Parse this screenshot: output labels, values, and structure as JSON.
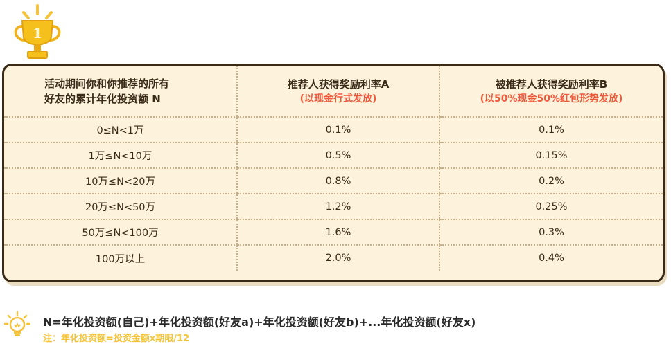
{
  "badge": {
    "number": "1"
  },
  "table": {
    "headers": {
      "col1_line1": "活动期间你和你推荐的所有",
      "col1_line2": "好友的累计年化投资额 N",
      "col2_title": "推荐人获得奖励利率A",
      "col2_sub": "(以现金行式发放)",
      "col3_title": "被推荐人获得奖励利率B",
      "col3_sub": "(以50%现金50%红包形势发放)"
    },
    "rows": [
      {
        "range": "0≤N<1万",
        "a": "0.1%",
        "b": "0.1%"
      },
      {
        "range": "1万≤N<10万",
        "a": "0.5%",
        "b": "0.15%"
      },
      {
        "range": "10万≤N<20万",
        "a": "0.8%",
        "b": "0.2%"
      },
      {
        "range": "20万≤N<50万",
        "a": "1.2%",
        "b": "0.25%"
      },
      {
        "range": "50万≤N<100万",
        "a": "1.6%",
        "b": "0.3%"
      },
      {
        "range": "100万以上",
        "a": "2.0%",
        "b": "0.4%"
      }
    ]
  },
  "footer": {
    "formula": "N=年化投资额(自己)+年化投资额(好友a)+年化投资额(好友b)+...年化投资额(好友x)",
    "note": "注：年化投资额=投资金额x期限/12"
  },
  "colors": {
    "accent": "#f05a3c",
    "gold": "#f5c43b",
    "card_bg": "#fdf3dc",
    "border": "#3a2a18"
  }
}
